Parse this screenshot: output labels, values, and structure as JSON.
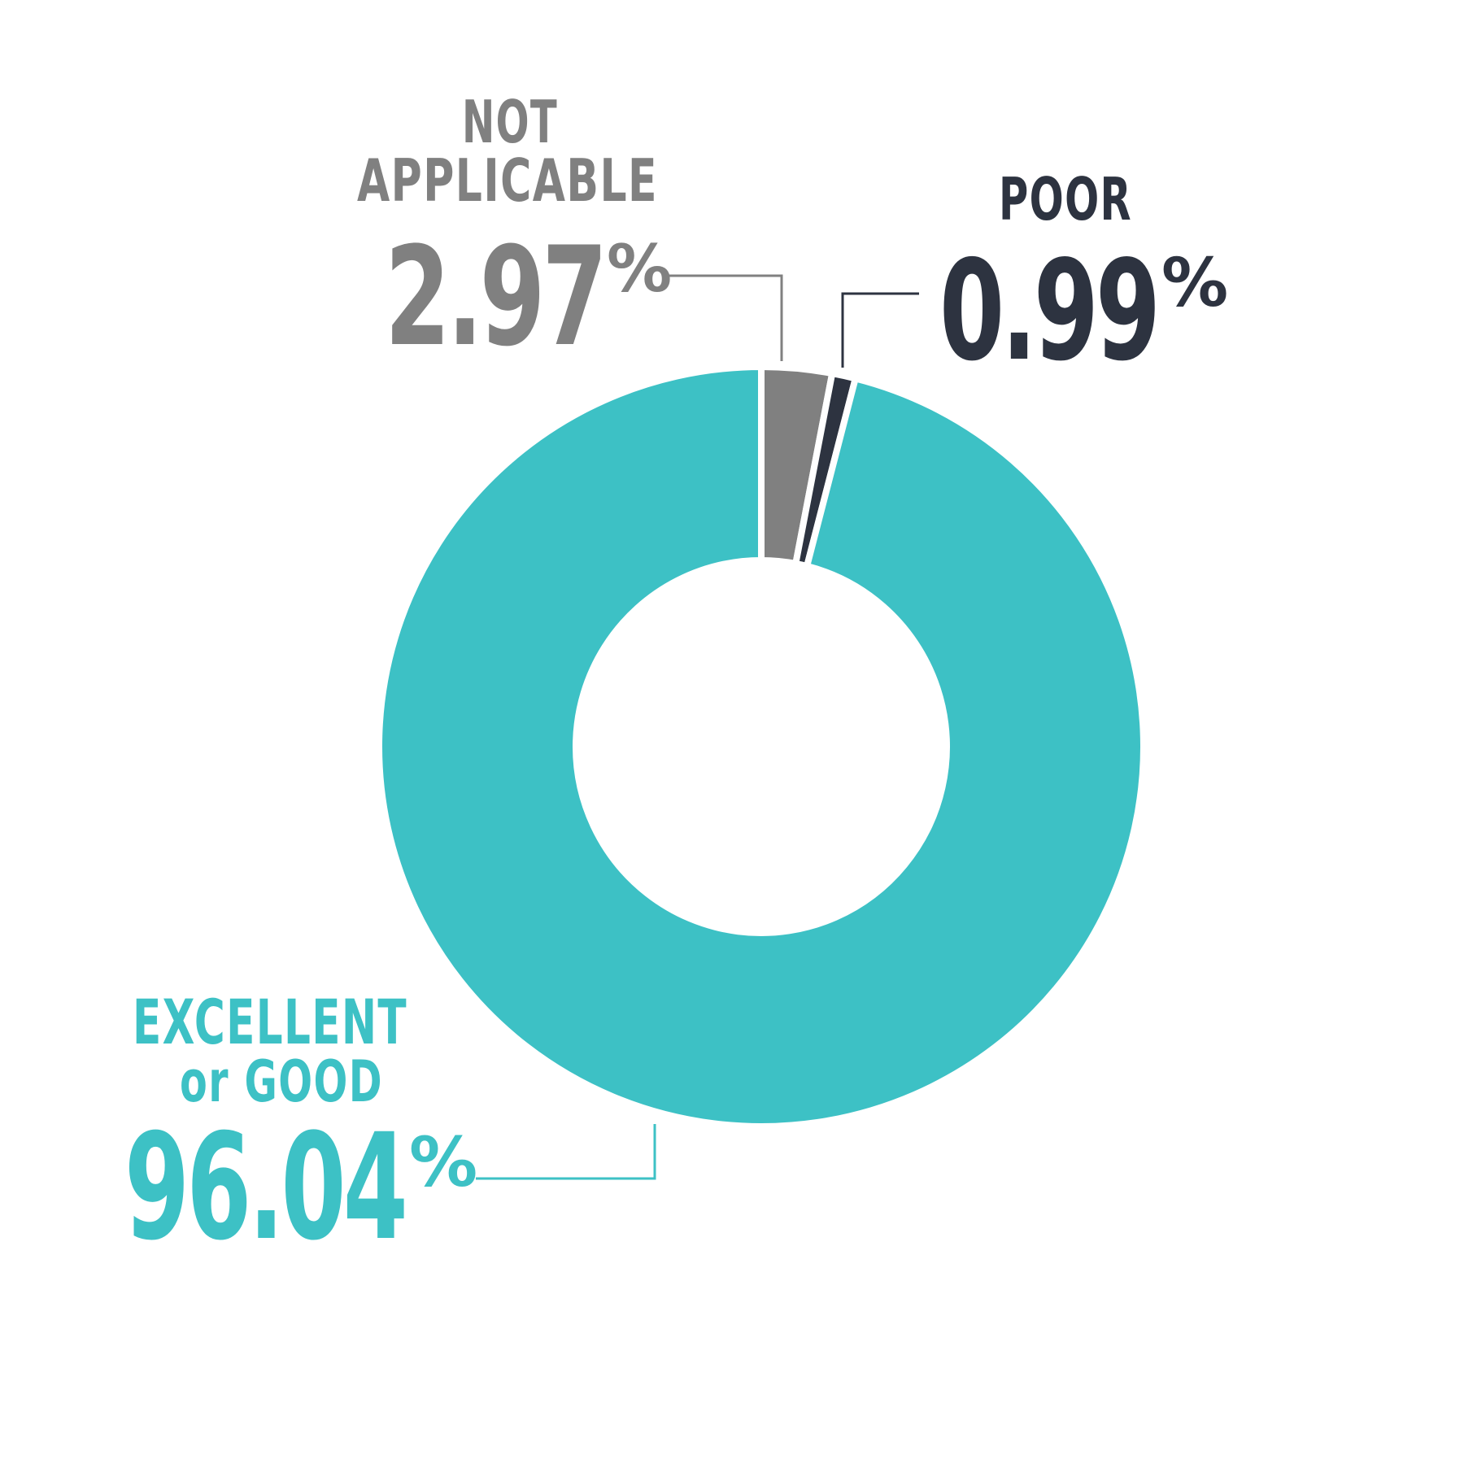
{
  "chart_data": {
    "type": "pie",
    "categories": [
      "EXCELLENT or GOOD",
      "NOT APPLICABLE",
      "POOR"
    ],
    "values": [
      96.04,
      2.97,
      0.99
    ],
    "unit": "%",
    "colors": [
      "#3dc1c5",
      "#808080",
      "#2d3340"
    ],
    "labels": [
      {
        "line1": "EXCELLENT",
        "line2": "or GOOD",
        "value": "96.04",
        "suffix": "%"
      },
      {
        "line1": "NOT",
        "line2": "APPLICABLE",
        "value": "2.97",
        "suffix": "%"
      },
      {
        "line1": "POOR",
        "line2": "",
        "value": "0.99",
        "suffix": "%"
      }
    ]
  }
}
